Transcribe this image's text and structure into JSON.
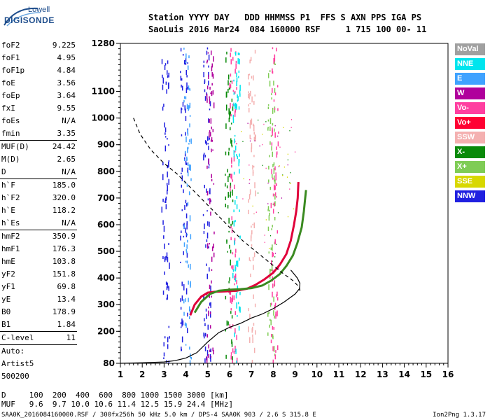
{
  "logo": {
    "line1": "Lowell",
    "line2": "DIGISONDE"
  },
  "header": {
    "line1": "Station YYYY DAY   DDD HHMMSS P1  FFS S AXN PPS IGA PS",
    "line2": "SaoLuis 2016 Mar24  084 160000 RSF     1 715 100 00- 11"
  },
  "params": [
    {
      "group": [
        {
          "k": "foF2",
          "v": "9.225"
        },
        {
          "k": "foF1",
          "v": "4.95"
        },
        {
          "k": "foF1p",
          "v": "4.84"
        },
        {
          "k": "foE",
          "v": "3.56"
        },
        {
          "k": "foEp",
          "v": "3.64"
        },
        {
          "k": "fxI",
          "v": "9.55"
        },
        {
          "k": "foEs",
          "v": "N/A"
        },
        {
          "k": "fmin",
          "v": "3.35"
        }
      ]
    },
    {
      "group": [
        {
          "k": "MUF(D)",
          "v": "24.42"
        },
        {
          "k": "M(D)",
          "v": "2.65"
        },
        {
          "k": "D",
          "v": "N/A"
        }
      ]
    },
    {
      "group": [
        {
          "k": "h`F",
          "v": "185.0"
        },
        {
          "k": "h`F2",
          "v": "320.0"
        },
        {
          "k": "h`E",
          "v": "118.2"
        },
        {
          "k": "h`Es",
          "v": "N/A"
        }
      ]
    },
    {
      "group": [
        {
          "k": "hmF2",
          "v": "350.9"
        },
        {
          "k": "hmF1",
          "v": "176.3"
        },
        {
          "k": "hmE",
          "v": "103.8"
        },
        {
          "k": "yF2",
          "v": "151.8"
        },
        {
          "k": "yF1",
          "v": "69.8"
        },
        {
          "k": "yE",
          "v": "13.4"
        },
        {
          "k": "B0",
          "v": "178.9"
        },
        {
          "k": "B1",
          "v": "1.84"
        }
      ]
    },
    {
      "group": [
        {
          "k": "C-level",
          "v": "11"
        }
      ]
    },
    {
      "group": [
        {
          "k": "Auto:",
          "v": ""
        },
        {
          "k": "Artist5",
          "v": ""
        },
        {
          "k": "500200",
          "v": ""
        }
      ]
    }
  ],
  "legend": [
    {
      "label": "NoVal",
      "color": "#a0a0a0"
    },
    {
      "label": "NNE",
      "color": "#00e5ee"
    },
    {
      "label": "E",
      "color": "#3fa2ff"
    },
    {
      "label": "W",
      "color": "#b0009c"
    },
    {
      "label": "Vo-",
      "color": "#ff3fa0"
    },
    {
      "label": "Vo+",
      "color": "#ff0033"
    },
    {
      "label": "SSW",
      "color": "#f4b0b0"
    },
    {
      "label": "X-",
      "color": "#0a8a0a"
    },
    {
      "label": "X+",
      "color": "#7fcc55"
    },
    {
      "label": "SSE",
      "color": "#d8d800"
    },
    {
      "label": "NNW",
      "color": "#2020e0"
    }
  ],
  "footer": {
    "row1": "D     100  200  400  600  800 1000 1500 3000 [km]",
    "row2": "MUF   9.6  9.7 10.0 10.6 11.4 12.5 15.9 24.4 [MHz]",
    "source": "SAA0K_2016084160000.RSF / 300fx256h 50 kHz 5.0 km / DPS-4 SAA0K 903 / 2.6 S 315.8 E",
    "version": "Ion2Png 1.3.17"
  },
  "chart_data": {
    "type": "scatter",
    "xlim": [
      1,
      16
    ],
    "ylim": [
      80,
      1280
    ],
    "xticks": [
      "1",
      "2",
      "3",
      "4",
      "5",
      "6",
      "7",
      "8",
      "9",
      "10",
      "11",
      "12",
      "13",
      "14",
      "15",
      "16"
    ],
    "yticks": [
      80,
      200,
      300,
      400,
      500,
      600,
      700,
      800,
      900,
      1000,
      1100,
      1280
    ],
    "grid": false,
    "legend_position": "right",
    "series": [
      {
        "color": "#e0003a",
        "x": [
          4.2,
          4.4,
          4.7,
          5.0,
          5.3,
          5.8,
          6.3,
          6.8,
          7.2,
          7.6,
          8.0,
          8.3,
          8.6,
          8.8,
          8.95,
          9.05,
          9.12,
          9.15
        ],
        "y": [
          260,
          300,
          330,
          345,
          348,
          350,
          352,
          360,
          375,
          395,
          420,
          450,
          490,
          540,
          600,
          650,
          700,
          760
        ]
      },
      {
        "color": "#3a8a20",
        "x": [
          4.4,
          4.7,
          5.1,
          5.5,
          6.0,
          6.5,
          7.0,
          7.5,
          7.9,
          8.3,
          8.6,
          8.9,
          9.1,
          9.3,
          9.4,
          9.45,
          9.5
        ],
        "y": [
          270,
          310,
          340,
          352,
          356,
          358,
          362,
          372,
          390,
          415,
          445,
          485,
          530,
          590,
          650,
          690,
          730
        ]
      },
      {
        "color": "#000000",
        "dash": false,
        "x": [
          1.0,
          2.0,
          3.0,
          3.5,
          4.0,
          4.5,
          5.0,
          5.5,
          6.0,
          6.5,
          7.0,
          7.5,
          8.0,
          8.5,
          9.0,
          9.2,
          9.22,
          9.1,
          8.8
        ],
        "y": [
          80,
          82,
          85,
          90,
          100,
          120,
          160,
          195,
          215,
          230,
          250,
          265,
          285,
          310,
          340,
          360,
          380,
          400,
          430
        ]
      },
      {
        "color": "#000000",
        "dash": true,
        "x": [
          1.6,
          1.9,
          2.4,
          3.0,
          3.6,
          4.2,
          4.8,
          5.4,
          6.0,
          6.6,
          7.2,
          7.8,
          8.4,
          8.9,
          9.2,
          9.22
        ],
        "y": [
          1000,
          940,
          880,
          830,
          790,
          740,
          690,
          640,
          590,
          540,
          500,
          460,
          420,
          390,
          365,
          351
        ]
      }
    ]
  }
}
